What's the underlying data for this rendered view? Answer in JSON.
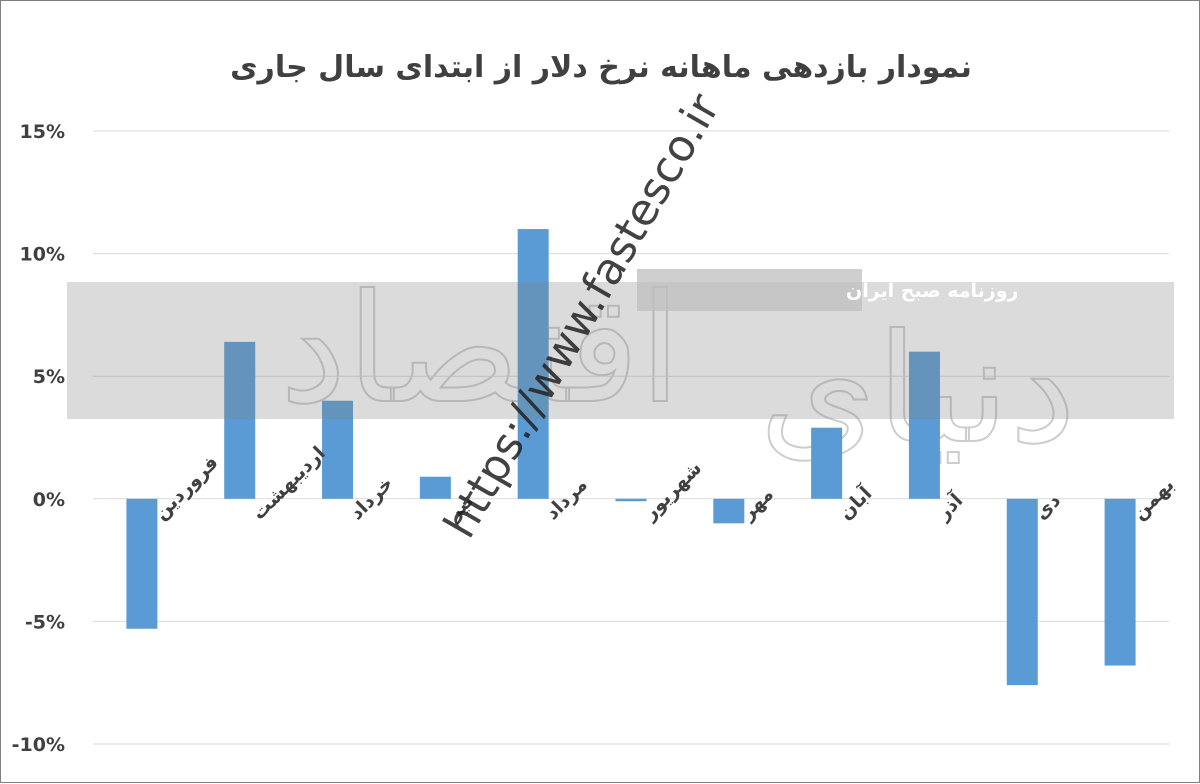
{
  "chart_data": {
    "type": "bar",
    "title": "نمودار بازدهی ماهانه نرخ دلار از ابتدای سال جاری",
    "categories": [
      "فروردین",
      "اردیبهشت",
      "خرداد",
      "تیر",
      "مرداد",
      "شهریور",
      "مهر",
      "آبان",
      "آذر",
      "دی",
      "بهمن"
    ],
    "values": [
      -5.3,
      6.4,
      4.0,
      0.9,
      11.0,
      -0.1,
      -1.0,
      2.9,
      6.0,
      -7.6,
      -6.8
    ],
    "yticks": [
      15,
      10,
      5,
      0,
      -5,
      -10
    ],
    "ytick_labels": [
      "15%",
      "10%",
      "5%",
      "0%",
      "-5%",
      "-10%"
    ],
    "ylim": [
      -10,
      15
    ],
    "grid": true,
    "legend": "none",
    "bar_color": "#5b9bd5"
  },
  "watermark": {
    "url": "https://www.fastesco.ir",
    "band_text": "روزنامه صبح ایران",
    "brand_left": "دنیای",
    "brand_right": "اقتصاد"
  }
}
